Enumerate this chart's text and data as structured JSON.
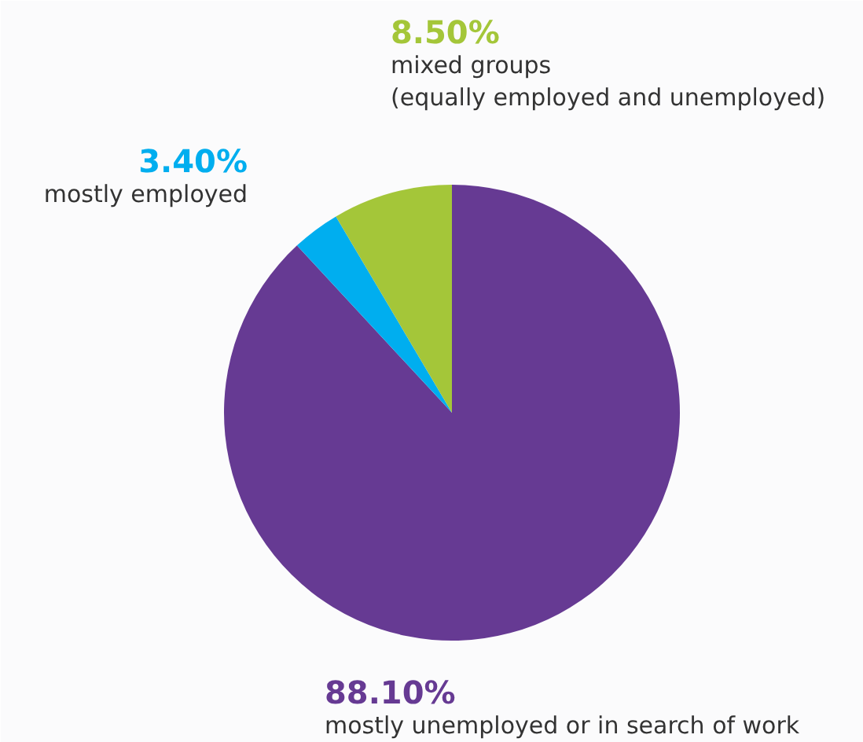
{
  "chart_data": {
    "type": "pie",
    "categories": [
      "mostly unemployed or in search of work",
      "mostly employed",
      "mixed groups\n(equally employed and unemployed)"
    ],
    "values": [
      88.1,
      3.4,
      8.5
    ],
    "value_labels": [
      "88.10%",
      "3.40%",
      "8.50%"
    ],
    "colors": [
      "#663a93",
      "#00aeef",
      "#a4c639"
    ]
  }
}
